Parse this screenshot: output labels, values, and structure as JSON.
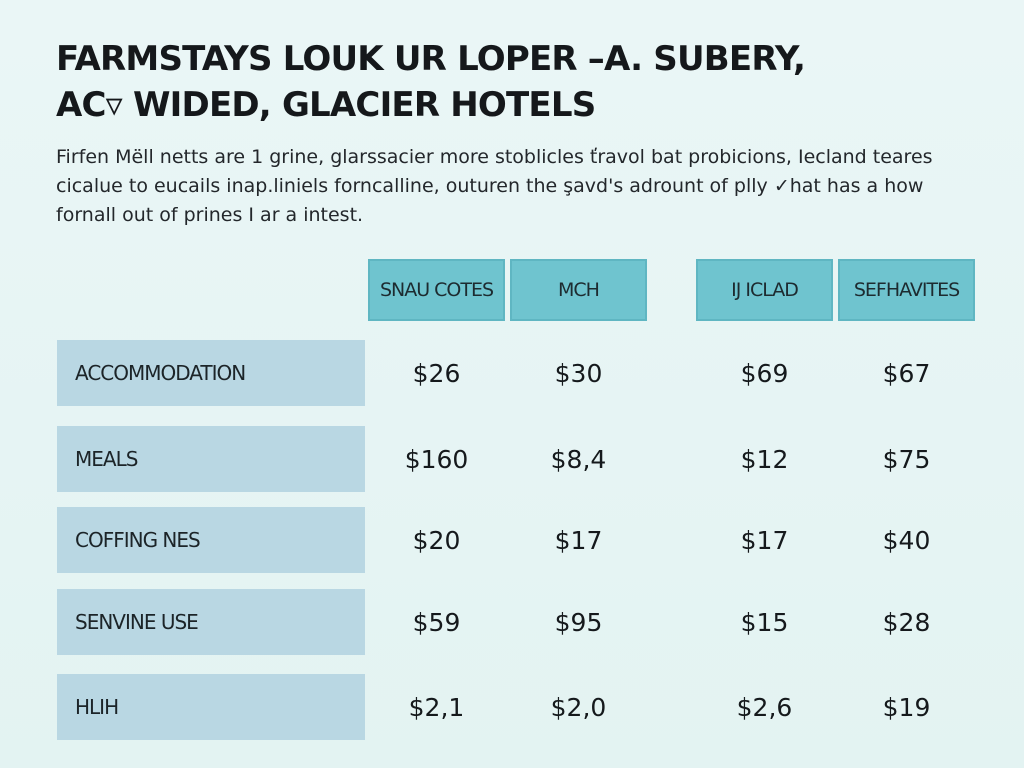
{
  "title": {
    "line1": "FARMSTAYS LOUK UR LOPER –A. SUBERY,",
    "line2": "AC▿ WIDED, GLACIER HOTELS"
  },
  "intro": {
    "line1": "Firfen Mëll netts are 1 grine, glarssacier more stoblicles ťravol bat probicions, Iecland teares",
    "line2": "cicalue to eucails inap.liniels forncalline, outuren the şavd's adrount of plly ✓hat has a how",
    "line3": "fornall out of prines I ar a intest."
  },
  "table": {
    "columns": [
      "SNAU COTES",
      "MCH",
      "IJ ICLAD",
      "SEFHAVITES"
    ],
    "rows": [
      {
        "label": "ACCOMMODATION",
        "values": [
          "$26",
          "$30",
          "$69",
          "$67"
        ]
      },
      {
        "label": "MEALS",
        "values": [
          "$160",
          "$8,4",
          "$12",
          "$75"
        ]
      },
      {
        "label": "COFFING NES",
        "values": [
          "$20",
          "$17",
          "$17",
          "$40"
        ]
      },
      {
        "label": "SENVINE USE",
        "values": [
          "$59",
          "$95",
          "$15",
          "$28"
        ]
      },
      {
        "label": "HLIH",
        "values": [
          "$2,1",
          "$2,0",
          "$2,6",
          "$19"
        ]
      }
    ]
  }
}
